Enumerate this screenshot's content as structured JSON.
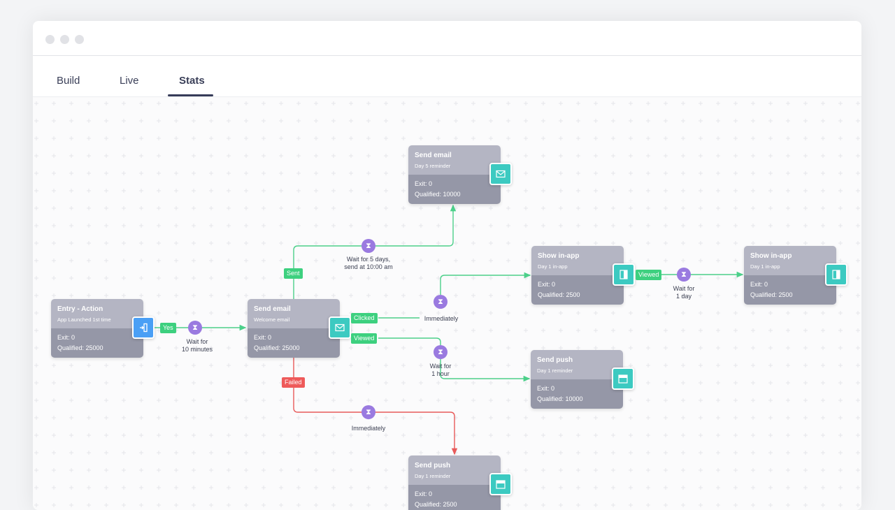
{
  "tabs": [
    {
      "label": "Build"
    },
    {
      "label": "Live"
    },
    {
      "label": "Stats",
      "active": true
    }
  ],
  "colors": {
    "accent": "#363b58",
    "green": "#3dd07f",
    "red": "#ee5a5a",
    "purple": "#9a7ae0",
    "teal": "#3ccac1",
    "blue": "#4a9ff5"
  },
  "nodes": {
    "entry": {
      "title": "Entry - Action",
      "subtitle": "App Launched 1st time",
      "exit": "Exit: 0",
      "qualified": "Qualified: 25000",
      "icon": "entry-door-icon"
    },
    "welcome": {
      "title": "Send email",
      "subtitle": "Welcome email",
      "exit": "Exit: 0",
      "qualified": "Qualified: 25000",
      "icon": "envelope-icon"
    },
    "day5": {
      "title": "Send email",
      "subtitle": "Day 5 reminder",
      "exit": "Exit: 0",
      "qualified": "Qualified: 10000",
      "icon": "envelope-icon"
    },
    "inapp1": {
      "title": "Show in-app",
      "subtitle": "Day 1 in-app",
      "exit": "Exit: 0",
      "qualified": "Qualified: 2500",
      "icon": "in-app-icon"
    },
    "inapp2": {
      "title": "Show in-app",
      "subtitle": "Day 1 in-app",
      "exit": "Exit: 0",
      "qualified": "Qualified: 2500",
      "icon": "in-app-icon"
    },
    "push1": {
      "title": "Send push",
      "subtitle": "Day 1 reminder",
      "exit": "Exit: 0",
      "qualified": "Qualified: 10000",
      "icon": "push-icon"
    },
    "push2": {
      "title": "Send push",
      "subtitle": "Day 1 reminder",
      "exit": "Exit: 0",
      "qualified": "Qualified: 2500",
      "icon": "push-icon"
    }
  },
  "labels": {
    "yes": "Yes",
    "sent": "Sent",
    "clicked": "Clicked",
    "viewed": "Viewed",
    "failed": "Failed",
    "viewed2": "Viewed"
  },
  "waits": {
    "w1": "Wait for\n10 minutes",
    "w2": "Wait for 5 days,\nsend at 10:00 am",
    "w3": "Immediately",
    "w4": "Wait for\n1 hour",
    "w5": "Immediately",
    "w6": "Wait for\n1 day"
  }
}
